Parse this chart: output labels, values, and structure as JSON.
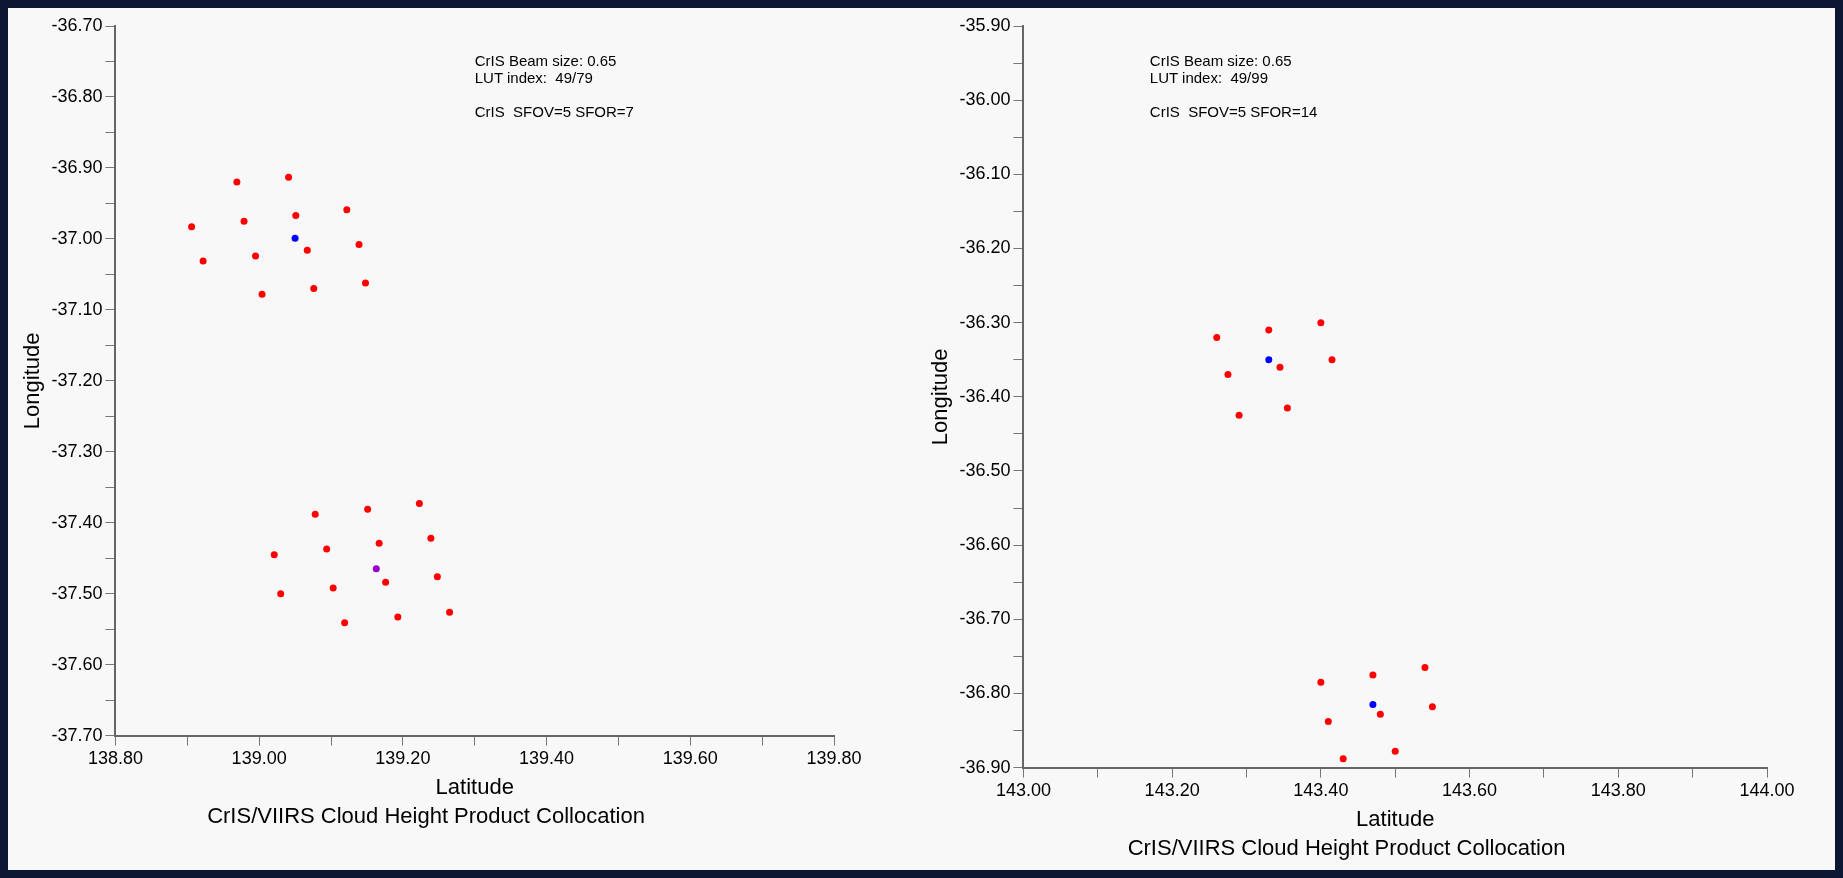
{
  "chart_data": [
    {
      "type": "scatter",
      "title": "CrIS/VIIRS Cloud Height Product Collocation",
      "xlabel": "Latitude",
      "ylabel": "Longitude",
      "annotations": [
        "CrIS Beam size: 0.65",
        "LUT index:  49/79",
        "CrIS  SFOV=5 SFOR=7"
      ],
      "legend": false,
      "grid": false,
      "marker": "circle",
      "xlim": [
        138.8,
        139.8
      ],
      "ylim": [
        -37.7,
        -36.7
      ],
      "xticks": [
        {
          "value": 138.8,
          "label": "138.80"
        },
        {
          "value": 138.9,
          "label": null
        },
        {
          "value": 139.0,
          "label": "139.00"
        },
        {
          "value": 139.1,
          "label": null
        },
        {
          "value": 139.2,
          "label": "139.20"
        },
        {
          "value": 139.3,
          "label": null
        },
        {
          "value": 139.4,
          "label": "139.40"
        },
        {
          "value": 139.5,
          "label": null
        },
        {
          "value": 139.6,
          "label": "139.60"
        },
        {
          "value": 139.7,
          "label": null
        },
        {
          "value": 139.8,
          "label": "139.80"
        }
      ],
      "yticks": [
        {
          "value": -37.7,
          "label": "-37.70"
        },
        {
          "value": -37.65,
          "label": null
        },
        {
          "value": -37.6,
          "label": "-37.60"
        },
        {
          "value": -37.55,
          "label": null
        },
        {
          "value": -37.5,
          "label": "-37.50"
        },
        {
          "value": -37.45,
          "label": null
        },
        {
          "value": -37.4,
          "label": "-37.40"
        },
        {
          "value": -37.35,
          "label": null
        },
        {
          "value": -37.3,
          "label": "-37.30"
        },
        {
          "value": -37.25,
          "label": null
        },
        {
          "value": -37.2,
          "label": "-37.20"
        },
        {
          "value": -37.15,
          "label": null
        },
        {
          "value": -37.1,
          "label": "-37.10"
        },
        {
          "value": -37.05,
          "label": null
        },
        {
          "value": -37.0,
          "label": "-37.00"
        },
        {
          "value": -36.95,
          "label": null
        },
        {
          "value": -36.9,
          "label": "-36.90"
        },
        {
          "value": -36.85,
          "label": null
        },
        {
          "value": -36.8,
          "label": "-36.80"
        },
        {
          "value": -36.75,
          "label": null
        },
        {
          "value": -36.7,
          "label": "-36.70"
        }
      ],
      "series": [
        {
          "color": "#ff0000",
          "x": [
            138.969,
            139.041,
            139.122,
            138.979,
            139.051,
            138.906,
            139.067,
            139.139,
            138.922,
            138.995,
            139.004,
            139.076,
            139.148,
            139.078,
            139.151,
            139.223,
            139.239,
            139.167,
            139.094,
            139.021,
            139.176,
            139.248,
            139.03,
            139.103,
            139.119,
            139.193,
            139.265
          ],
          "values": [
            -36.92,
            -36.913,
            -36.959,
            -36.975,
            -36.967,
            -36.983,
            -37.016,
            -37.008,
            -37.031,
            -37.024,
            -37.078,
            -37.07,
            -37.062,
            -37.388,
            -37.381,
            -37.373,
            -37.422,
            -37.429,
            -37.437,
            -37.445,
            -37.484,
            -37.476,
            -37.5,
            -37.492,
            -37.541,
            -37.533,
            -37.526
          ]
        },
        {
          "color": "#0000ff",
          "x": [
            139.05
          ],
          "values": [
            -36.999
          ]
        },
        {
          "color": "#9900cc",
          "x": [
            139.163
          ],
          "values": [
            -37.465
          ]
        }
      ]
    },
    {
      "type": "scatter",
      "title": "CrIS/VIIRS Cloud Height Product Collocation",
      "xlabel": "Latitude",
      "ylabel": "Longitude",
      "annotations": [
        "CrIS Beam size: 0.65",
        "LUT index:  49/99",
        "CrIS  SFOV=5 SFOR=14"
      ],
      "legend": false,
      "grid": false,
      "marker": "circle",
      "xlim": [
        143.0,
        144.0
      ],
      "ylim": [
        -36.9,
        -35.9
      ],
      "xticks": [
        {
          "value": 143.0,
          "label": "143.00"
        },
        {
          "value": 143.1,
          "label": null
        },
        {
          "value": 143.2,
          "label": "143.20"
        },
        {
          "value": 143.3,
          "label": null
        },
        {
          "value": 143.4,
          "label": "143.40"
        },
        {
          "value": 143.5,
          "label": null
        },
        {
          "value": 143.6,
          "label": "143.60"
        },
        {
          "value": 143.7,
          "label": null
        },
        {
          "value": 143.8,
          "label": "143.80"
        },
        {
          "value": 143.9,
          "label": null
        },
        {
          "value": 144.0,
          "label": "144.00"
        }
      ],
      "yticks": [
        {
          "value": -36.9,
          "label": "-36.90"
        },
        {
          "value": -36.85,
          "label": null
        },
        {
          "value": -36.8,
          "label": "-36.80"
        },
        {
          "value": -36.75,
          "label": null
        },
        {
          "value": -36.7,
          "label": "-36.70"
        },
        {
          "value": -36.65,
          "label": null
        },
        {
          "value": -36.6,
          "label": "-36.60"
        },
        {
          "value": -36.55,
          "label": null
        },
        {
          "value": -36.5,
          "label": "-36.50"
        },
        {
          "value": -36.45,
          "label": null
        },
        {
          "value": -36.4,
          "label": "-36.40"
        },
        {
          "value": -36.35,
          "label": null
        },
        {
          "value": -36.3,
          "label": "-36.30"
        },
        {
          "value": -36.25,
          "label": null
        },
        {
          "value": -36.2,
          "label": "-36.20"
        },
        {
          "value": -36.15,
          "label": null
        },
        {
          "value": -36.1,
          "label": "-36.10"
        },
        {
          "value": -36.05,
          "label": null
        },
        {
          "value": -36.0,
          "label": "-36.00"
        },
        {
          "value": -35.95,
          "label": null
        },
        {
          "value": -35.9,
          "label": "-35.90"
        }
      ],
      "series": [
        {
          "color": "#ff0000",
          "x": [
            143.26,
            143.33,
            143.4,
            143.275,
            143.345,
            143.415,
            143.29,
            143.355,
            143.4,
            143.47,
            143.54,
            143.48,
            143.55,
            143.41,
            143.43,
            143.5
          ],
          "values": [
            -36.32,
            -36.31,
            -36.3,
            -36.37,
            -36.36,
            -36.35,
            -36.425,
            -36.415,
            -36.785,
            -36.775,
            -36.765,
            -36.828,
            -36.818,
            -36.838,
            -36.888,
            -36.878
          ]
        },
        {
          "color": "#0000ff",
          "x": [
            143.33,
            143.47
          ],
          "values": [
            -36.35,
            -36.815
          ]
        }
      ]
    }
  ]
}
